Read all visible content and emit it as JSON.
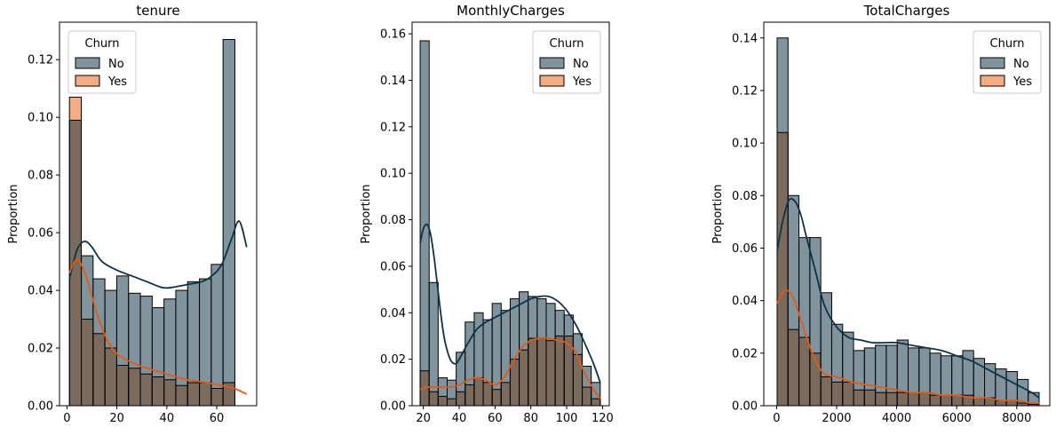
{
  "colors": {
    "no_fill": "#4f6b78",
    "no_line": "#0b3447",
    "yes_fill": "#f08c50",
    "yes_line": "#e55a10",
    "overlap_fill": "#7a6b5d",
    "edge": "#000000"
  },
  "chart_data": [
    {
      "type": "histogram",
      "title": "tenure",
      "ylabel": "Proportion",
      "xlim": [
        -3,
        76
      ],
      "ylim": [
        0,
        0.133
      ],
      "xticks": [
        0,
        20,
        40,
        60
      ],
      "xtick_labels": [
        "0",
        "20",
        "40",
        "60"
      ],
      "yticks": [
        0,
        0.02,
        0.04,
        0.06,
        0.08,
        0.1,
        0.12
      ],
      "ytick_labels": [
        "0.00",
        "0.02",
        "0.04",
        "0.06",
        "0.08",
        "0.10",
        "0.12"
      ],
      "legend": {
        "title": "Churn",
        "placement": "top-left",
        "entries": [
          "No",
          "Yes"
        ]
      },
      "bin_edges": [
        1,
        5.733,
        10.467,
        15.2,
        19.933,
        24.667,
        29.4,
        34.133,
        38.867,
        43.6,
        48.333,
        53.067,
        57.8,
        62.533,
        67.267,
        72
      ],
      "series": [
        {
          "name": "No",
          "values": [
            0.099,
            0.052,
            0.044,
            0.04,
            0.045,
            0.039,
            0.038,
            0.034,
            0.037,
            0.04,
            0.043,
            0.044,
            0.049,
            0.127
          ],
          "kde": {
            "x": [
              1,
              4,
              7,
              10,
              14,
              20,
              26,
              32,
              38,
              42,
              48,
              54,
              58,
              62,
              66,
              69,
              72
            ],
            "y": [
              0.044,
              0.054,
              0.057,
              0.055,
              0.05,
              0.047,
              0.045,
              0.043,
              0.041,
              0.041,
              0.042,
              0.043,
              0.045,
              0.049,
              0.058,
              0.064,
              0.055
            ]
          }
        },
        {
          "name": "Yes",
          "values": [
            0.107,
            0.03,
            0.025,
            0.02,
            0.014,
            0.013,
            0.011,
            0.01,
            0.009,
            0.007,
            0.008,
            0.008,
            0.006,
            0.008
          ],
          "kde": {
            "x": [
              1,
              3,
              5,
              8,
              12,
              16,
              20,
              26,
              32,
              40,
              48,
              56,
              62,
              67,
              72
            ],
            "y": [
              0.046,
              0.05,
              0.05,
              0.044,
              0.032,
              0.023,
              0.018,
              0.015,
              0.013,
              0.011,
              0.009,
              0.008,
              0.007,
              0.006,
              0.004
            ]
          }
        }
      ]
    },
    {
      "type": "histogram",
      "title": "MonthlyCharges",
      "ylabel": "Proportion",
      "xlim": [
        13.75,
        123.75
      ],
      "ylim": [
        0,
        0.165
      ],
      "xticks": [
        20,
        40,
        60,
        80,
        100,
        120
      ],
      "xtick_labels": [
        "20",
        "40",
        "60",
        "80",
        "100",
        "120"
      ],
      "yticks": [
        0,
        0.02,
        0.04,
        0.06,
        0.08,
        0.1,
        0.12,
        0.14,
        0.16
      ],
      "ytick_labels": [
        "0.00",
        "0.02",
        "0.04",
        "0.06",
        "0.08",
        "0.10",
        "0.12",
        "0.14",
        "0.16"
      ],
      "legend": {
        "title": "Churn",
        "placement": "top-right",
        "entries": [
          "No",
          "Yes"
        ]
      },
      "bin_edges": [
        18.25,
        23.273,
        28.296,
        33.319,
        38.342,
        43.365,
        48.388,
        53.411,
        58.434,
        63.457,
        68.48,
        73.503,
        78.526,
        83.549,
        88.572,
        93.595,
        98.618,
        103.641,
        108.664,
        113.687,
        118.71
      ],
      "series": [
        {
          "name": "No",
          "values": [
            0.157,
            0.053,
            0.012,
            0.011,
            0.023,
            0.036,
            0.04,
            0.037,
            0.044,
            0.041,
            0.046,
            0.049,
            0.047,
            0.046,
            0.044,
            0.041,
            0.039,
            0.031,
            0.017,
            0.01
          ],
          "kde": {
            "x": [
              18.25,
              20,
              22,
              24,
              26,
              28,
              30,
              32,
              35,
              38,
              40,
              45,
              50,
              55,
              60,
              65,
              70,
              75,
              80,
              85,
              90,
              95,
              100,
              105,
              110,
              115,
              118.7
            ],
            "y": [
              0.07,
              0.076,
              0.078,
              0.074,
              0.064,
              0.051,
              0.038,
              0.028,
              0.02,
              0.018,
              0.02,
              0.027,
              0.033,
              0.036,
              0.038,
              0.04,
              0.042,
              0.044,
              0.046,
              0.047,
              0.047,
              0.045,
              0.041,
              0.035,
              0.027,
              0.018,
              0.01
            ]
          }
        },
        {
          "name": "Yes",
          "values": [
            0.015,
            0.006,
            0.004,
            0.003,
            0.006,
            0.009,
            0.012,
            0.01,
            0.007,
            0.01,
            0.02,
            0.024,
            0.029,
            0.029,
            0.028,
            0.03,
            0.03,
            0.022,
            0.008,
            0.003
          ],
          "kde": {
            "x": [
              18.25,
              22,
              26,
              30,
              35,
              40,
              45,
              50,
              55,
              60,
              65,
              70,
              75,
              80,
              85,
              90,
              95,
              100,
              105,
              110,
              115,
              118.7
            ],
            "y": [
              0.007,
              0.008,
              0.008,
              0.008,
              0.008,
              0.009,
              0.011,
              0.012,
              0.011,
              0.009,
              0.012,
              0.019,
              0.025,
              0.028,
              0.029,
              0.029,
              0.028,
              0.027,
              0.023,
              0.014,
              0.007,
              0.003
            ]
          }
        }
      ]
    },
    {
      "type": "histogram",
      "title": "TotalCharges",
      "ylabel": "Proportion",
      "xlim": [
        -425,
        9100
      ],
      "ylim": [
        0,
        0.146
      ],
      "xticks": [
        0,
        2000,
        4000,
        6000,
        8000
      ],
      "xtick_labels": [
        "0",
        "2000",
        "4000",
        "6000",
        "8000"
      ],
      "yticks": [
        0,
        0.02,
        0.04,
        0.06,
        0.08,
        0.1,
        0.12,
        0.14
      ],
      "ytick_labels": [
        "0.00",
        "0.02",
        "0.04",
        "0.06",
        "0.08",
        "0.10",
        "0.12",
        "0.14"
      ],
      "legend": {
        "title": "Churn",
        "placement": "top-right",
        "entries": [
          "No",
          "Yes"
        ]
      },
      "bin_edges": [
        18.8,
        382.4,
        746.0,
        1109.6,
        1473.2,
        1836.8,
        2200.4,
        2564.0,
        2927.6,
        3291.2,
        3654.8,
        4018.4,
        4382.0,
        4745.6,
        5109.2,
        5472.8,
        5836.4,
        6200.0,
        6563.6,
        6927.2,
        7290.8,
        7654.4,
        8018.0,
        8381.6,
        8745.2
      ],
      "series": [
        {
          "name": "No",
          "values": [
            0.14,
            0.08,
            0.064,
            0.064,
            0.043,
            0.031,
            0.028,
            0.021,
            0.022,
            0.023,
            0.023,
            0.025,
            0.022,
            0.022,
            0.02,
            0.019,
            0.019,
            0.021,
            0.018,
            0.016,
            0.014,
            0.013,
            0.01,
            0.005
          ],
          "kde": {
            "x": [
              18.8,
              200,
              400,
              600,
              800,
              1000,
              1300,
              1600,
              2000,
              2400,
              2800,
              3200,
              3600,
              4000,
              4500,
              5000,
              5500,
              6000,
              6500,
              7000,
              7500,
              8000,
              8500,
              8745
            ],
            "y": [
              0.059,
              0.07,
              0.078,
              0.078,
              0.073,
              0.064,
              0.051,
              0.038,
              0.03,
              0.026,
              0.025,
              0.024,
              0.024,
              0.024,
              0.023,
              0.022,
              0.021,
              0.019,
              0.017,
              0.014,
              0.011,
              0.008,
              0.005,
              0.003
            ]
          }
        },
        {
          "name": "Yes",
          "values": [
            0.104,
            0.029,
            0.026,
            0.02,
            0.011,
            0.009,
            0.009,
            0.006,
            0.006,
            0.005,
            0.005,
            0.005,
            0.005,
            0.005,
            0.004,
            0.004,
            0.004,
            0.004,
            0.003,
            0.003,
            0.002,
            0.002,
            0.001,
            0.0005
          ],
          "kde": {
            "x": [
              18.8,
              150,
              300,
              450,
              600,
              800,
              1000,
              1300,
              1600,
              2000,
              2500,
              3000,
              3500,
              4000,
              4500,
              5000,
              5500,
              6000,
              6500,
              7000,
              7500,
              8000,
              8500,
              8745
            ],
            "y": [
              0.039,
              0.042,
              0.044,
              0.043,
              0.04,
              0.033,
              0.026,
              0.017,
              0.012,
              0.011,
              0.009,
              0.008,
              0.007,
              0.006,
              0.005,
              0.005,
              0.004,
              0.004,
              0.003,
              0.003,
              0.002,
              0.002,
              0.001,
              0.001
            ]
          }
        }
      ]
    }
  ]
}
